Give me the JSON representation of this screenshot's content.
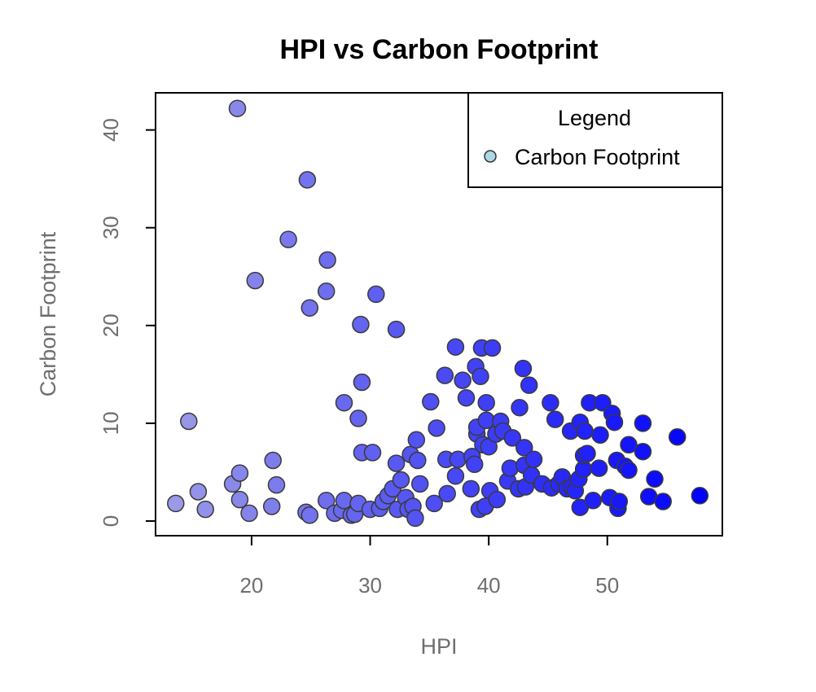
{
  "chart_data": {
    "type": "scatter",
    "title": "HPI vs Carbon Footprint",
    "xlabel": "HPI",
    "ylabel": "Carbon Footprint",
    "xlim": [
      11.9,
      59.7
    ],
    "ylim": [
      -1.5,
      43.8
    ],
    "xticks": [
      20,
      30,
      40,
      50
    ],
    "yticks": [
      0,
      10,
      20,
      30,
      40
    ],
    "grid": false,
    "legend": {
      "title": "Legend",
      "placement": "top-right",
      "entries": [
        {
          "label": "Carbon Footprint",
          "color": "#add8e6"
        }
      ]
    },
    "color_gradient": {
      "low": "#9a9ae8",
      "high": "#0000ff"
    },
    "points": [
      [
        18.8,
        42.2
      ],
      [
        24.7,
        34.9
      ],
      [
        23.1,
        28.8
      ],
      [
        26.4,
        26.7
      ],
      [
        20.3,
        24.6
      ],
      [
        26.3,
        23.5
      ],
      [
        30.5,
        23.2
      ],
      [
        24.9,
        21.8
      ],
      [
        29.2,
        20.1
      ],
      [
        32.2,
        19.6
      ],
      [
        14.7,
        10.2
      ],
      [
        29.3,
        14.2
      ],
      [
        27.8,
        12.1
      ],
      [
        29.0,
        10.5
      ],
      [
        29.3,
        7.0
      ],
      [
        30.2,
        7.0
      ],
      [
        13.6,
        1.8
      ],
      [
        15.5,
        3.0
      ],
      [
        16.1,
        1.2
      ],
      [
        18.4,
        3.8
      ],
      [
        19.0,
        4.9
      ],
      [
        19.0,
        2.2
      ],
      [
        19.8,
        0.8
      ],
      [
        21.8,
        6.2
      ],
      [
        22.1,
        3.7
      ],
      [
        21.7,
        1.5
      ],
      [
        24.6,
        0.9
      ],
      [
        24.9,
        0.6
      ],
      [
        26.3,
        2.1
      ],
      [
        27.0,
        0.8
      ],
      [
        27.6,
        1.1
      ],
      [
        27.8,
        2.1
      ],
      [
        28.4,
        0.6
      ],
      [
        28.7,
        0.7
      ],
      [
        29.0,
        1.8
      ],
      [
        30.0,
        1.2
      ],
      [
        30.8,
        1.3
      ],
      [
        31.1,
        2.0
      ],
      [
        31.5,
        2.6
      ],
      [
        31.9,
        3.3
      ],
      [
        32.2,
        5.9
      ],
      [
        32.3,
        1.2
      ],
      [
        32.6,
        4.2
      ],
      [
        33.0,
        2.4
      ],
      [
        33.2,
        1.2
      ],
      [
        33.4,
        6.8
      ],
      [
        33.6,
        1.5
      ],
      [
        33.8,
        0.3
      ],
      [
        33.9,
        8.3
      ],
      [
        34.0,
        6.2
      ],
      [
        34.2,
        3.8
      ],
      [
        35.1,
        12.2
      ],
      [
        35.4,
        1.8
      ],
      [
        35.6,
        9.5
      ],
      [
        36.3,
        14.9
      ],
      [
        36.4,
        6.3
      ],
      [
        36.5,
        2.8
      ],
      [
        37.2,
        17.8
      ],
      [
        37.2,
        4.6
      ],
      [
        37.4,
        6.3
      ],
      [
        37.8,
        14.4
      ],
      [
        38.1,
        12.6
      ],
      [
        38.5,
        3.3
      ],
      [
        38.6,
        6.6
      ],
      [
        38.8,
        5.8
      ],
      [
        38.9,
        15.8
      ],
      [
        39.0,
        8.9
      ],
      [
        39.0,
        9.6
      ],
      [
        39.2,
        1.2
      ],
      [
        39.3,
        14.8
      ],
      [
        39.4,
        17.7
      ],
      [
        39.5,
        7.8
      ],
      [
        39.7,
        1.5
      ],
      [
        39.8,
        12.1
      ],
      [
        39.8,
        10.3
      ],
      [
        40.0,
        7.6
      ],
      [
        40.1,
        3.1
      ],
      [
        40.3,
        17.7
      ],
      [
        40.6,
        8.9
      ],
      [
        40.7,
        2.2
      ],
      [
        41.0,
        10.2
      ],
      [
        41.2,
        9.2
      ],
      [
        41.6,
        4.1
      ],
      [
        41.8,
        5.4
      ],
      [
        42.0,
        8.5
      ],
      [
        42.5,
        3.3
      ],
      [
        42.6,
        11.6
      ],
      [
        42.9,
        15.6
      ],
      [
        43.0,
        7.5
      ],
      [
        43.0,
        5.7
      ],
      [
        43.1,
        3.5
      ],
      [
        43.4,
        13.9
      ],
      [
        43.6,
        4.7
      ],
      [
        43.8,
        6.3
      ],
      [
        44.5,
        3.8
      ],
      [
        45.2,
        12.1
      ],
      [
        45.3,
        3.4
      ],
      [
        45.6,
        10.4
      ],
      [
        45.9,
        3.8
      ],
      [
        46.2,
        4.5
      ],
      [
        46.6,
        3.3
      ],
      [
        46.9,
        9.2
      ],
      [
        47.0,
        3.5
      ],
      [
        47.3,
        3.1
      ],
      [
        47.6,
        4.3
      ],
      [
        47.7,
        10.1
      ],
      [
        47.7,
        1.4
      ],
      [
        48.0,
        5.3
      ],
      [
        48.0,
        6.7
      ],
      [
        48.1,
        9.2
      ],
      [
        48.3,
        6.9
      ],
      [
        48.5,
        12.1
      ],
      [
        48.8,
        2.1
      ],
      [
        49.3,
        5.4
      ],
      [
        49.4,
        8.8
      ],
      [
        49.6,
        12.1
      ],
      [
        50.2,
        2.4
      ],
      [
        50.4,
        11.0
      ],
      [
        50.6,
        10.1
      ],
      [
        50.8,
        6.2
      ],
      [
        50.9,
        1.3
      ],
      [
        51.0,
        2.0
      ],
      [
        51.5,
        5.6
      ],
      [
        51.8,
        7.8
      ],
      [
        51.8,
        5.2
      ],
      [
        53.0,
        10.0
      ],
      [
        53.0,
        7.1
      ],
      [
        53.5,
        2.5
      ],
      [
        54.0,
        4.3
      ],
      [
        54.7,
        2.0
      ],
      [
        55.9,
        8.6
      ],
      [
        57.8,
        2.6
      ]
    ]
  }
}
